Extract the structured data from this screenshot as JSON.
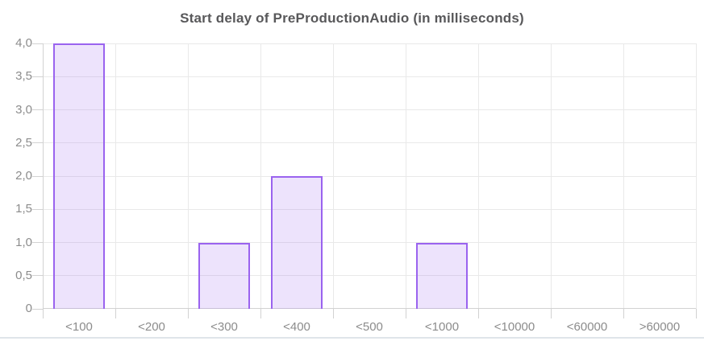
{
  "chart_data": {
    "type": "bar",
    "title": "Start delay of PreProductionAudio (in milliseconds)",
    "categories": [
      "<100",
      "<200",
      "<300",
      "<400",
      "<500",
      "<1000",
      "<10000",
      "<60000",
      ">60000"
    ],
    "values": [
      4,
      0,
      1,
      2,
      0,
      1,
      0,
      0,
      0
    ],
    "xlabel": "",
    "ylabel": "",
    "ylim": [
      0,
      4
    ],
    "y_tick_step": 0.5,
    "y_tick_labels": [
      "0",
      "0,5",
      "1,0",
      "1,5",
      "2,0",
      "2,5",
      "3,0",
      "3,5",
      "4,0"
    ],
    "grid": true,
    "legend_position": "none",
    "colors": {
      "bar_fill": "rgba(154,99,239,0.18)",
      "bar_border": "#9a63ef",
      "gridline": "#e9e9e9",
      "axis": "#d2d2d2",
      "tick_label": "#8c8c8c",
      "title": "#58585a",
      "panel_border": "#dfe5ea"
    }
  }
}
